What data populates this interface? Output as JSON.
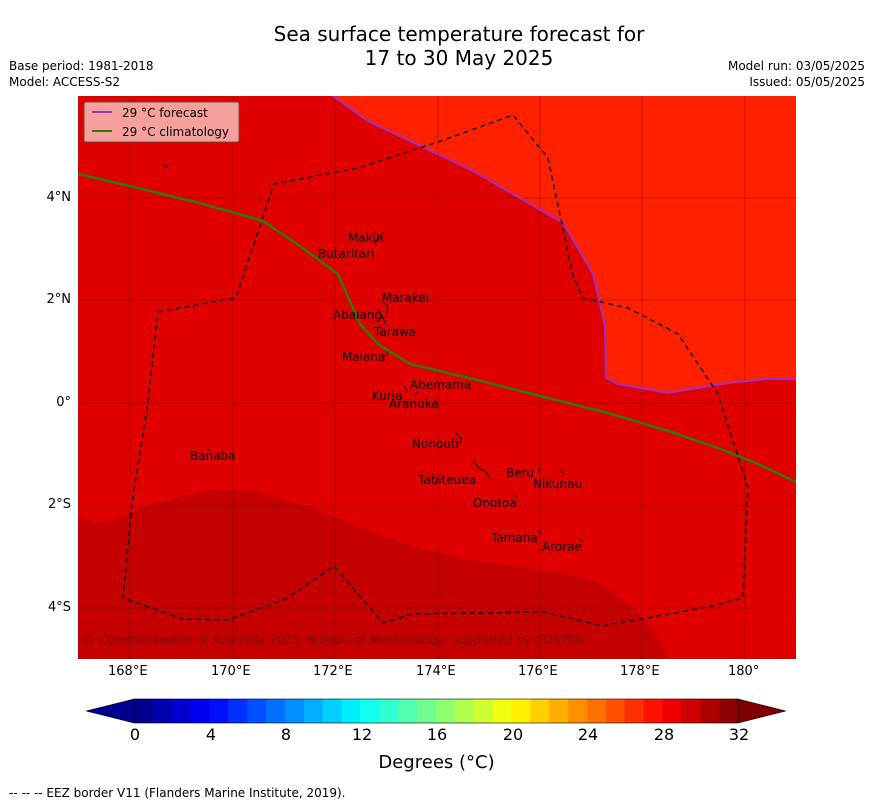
{
  "header": {
    "title_line1": "Sea surface temperature forecast for",
    "title_line2": "17 to 30 May 2025",
    "base_period": "Base period: 1981-2018",
    "model": "Model: ACCESS-S2",
    "model_run": "Model run: 03/05/2025",
    "issued": "Issued: 05/05/2025"
  },
  "map": {
    "legend": [
      {
        "label": "29 °C  forecast",
        "color": "#9b30c8"
      },
      {
        "label": "29 °C  climatology",
        "color": "#2e7d00"
      }
    ],
    "lon_ticks": [
      "168°E",
      "170°E",
      "172°E",
      "174°E",
      "176°E",
      "178°E",
      "180°"
    ],
    "lat_ticks": [
      "4°N",
      "2°N",
      "0°",
      "2°S",
      "4°S"
    ],
    "islands": [
      {
        "name": "Makin"
      },
      {
        "name": "Butaritari"
      },
      {
        "name": "Marakei"
      },
      {
        "name": "Abaiang"
      },
      {
        "name": "Tarawa"
      },
      {
        "name": "Maiana"
      },
      {
        "name": "Abemama"
      },
      {
        "name": "Kuria"
      },
      {
        "name": "Aranuka"
      },
      {
        "name": "Nonouti"
      },
      {
        "name": "Banaba"
      },
      {
        "name": "Beru"
      },
      {
        "name": "Tabiteuea"
      },
      {
        "name": "Nikunau"
      },
      {
        "name": "Onotoa"
      },
      {
        "name": "Tamana"
      },
      {
        "name": "Arorae"
      }
    ],
    "copyright": "© Commonwealth of Australia 2025, Bureau of Meteorology, supported by COSPPac",
    "colors": {
      "zone_warm": "#ff2000",
      "zone_main": "#e00000",
      "zone_hot": "#c40000"
    }
  },
  "colorbar": {
    "ticks": [
      "0",
      "4",
      "8",
      "12",
      "16",
      "20",
      "24",
      "28",
      "32"
    ],
    "label": "Degrees ($^\\circ$C)",
    "label_display": "Degrees (°C)",
    "min": 0,
    "max": 32,
    "step": 1
  },
  "footer": {
    "eez_note": "--  --  -- EEZ border V11 (Flanders Marine Institute, 2019)."
  }
}
